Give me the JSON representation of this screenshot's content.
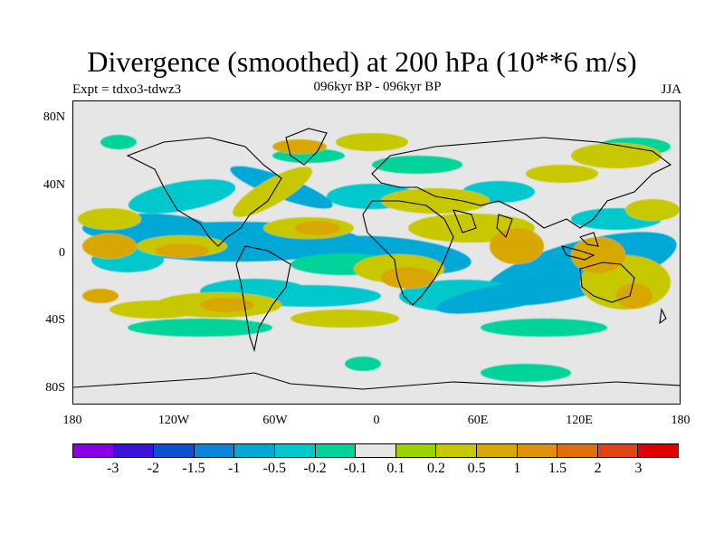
{
  "title": "Divergence (smoothed) at 200 hPa (10**6 m/s)",
  "experiment": "Expt = tdxo3-tdwz3",
  "period": "096kyr BP - 096kyr BP",
  "season": "JJA",
  "map": {
    "projection": "cylindrical equidistant",
    "lon_range": [
      -180,
      180
    ],
    "lat_range": [
      -90,
      90
    ],
    "lat_labels": [
      "80N",
      "40N",
      "0",
      "40S",
      "80S"
    ],
    "lon_labels": [
      "180",
      "120W",
      "60W",
      "0",
      "60E",
      "120E",
      "180"
    ]
  },
  "colorbar": {
    "colors": [
      "#8a00e6",
      "#3b14d9",
      "#0f4fd1",
      "#0a84d6",
      "#00a8d6",
      "#00c8cc",
      "#00d49a",
      "#e6e6e6",
      "#9ad400",
      "#c8c800",
      "#d9a800",
      "#e0900a",
      "#e06e0a",
      "#e04414",
      "#e00000"
    ],
    "labels": [
      "-3",
      "-2",
      "-1.5",
      "-1",
      "-0.5",
      "-0.2",
      "-0.1",
      "0.1",
      "0.2",
      "0.5",
      "1",
      "1.5",
      "2",
      "3"
    ]
  }
}
